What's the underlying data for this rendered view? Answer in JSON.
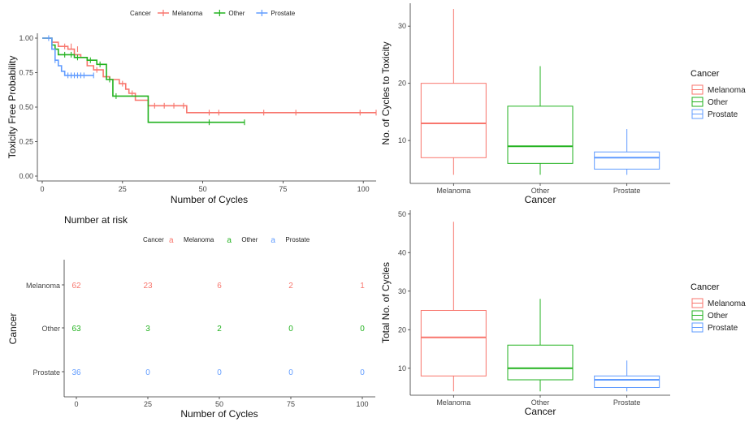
{
  "colors": {
    "Melanoma": "#F8766D",
    "Other": "#22B21F",
    "Prostate": "#619CFF",
    "axis": "#333333"
  },
  "chart_data": [
    {
      "type": "line",
      "subtype": "kaplan-meier",
      "xlabel": "Number of Cycles",
      "ylabel": "Toxicity Free Probability",
      "xlim": [
        0,
        104
      ],
      "ylim": [
        0,
        1
      ],
      "x_ticks": [
        "0",
        "25",
        "50",
        "75",
        "100"
      ],
      "y_ticks": [
        "0.00",
        "0.25",
        "0.50",
        "0.75",
        "1.00"
      ],
      "legend": {
        "title": "Cancer",
        "position": "top",
        "labels": [
          "Melanoma",
          "Other",
          "Prostate"
        ]
      },
      "series": [
        {
          "name": "Melanoma",
          "steps": [
            [
              0,
              1.0
            ],
            [
              3,
              0.97
            ],
            [
              5,
              0.94
            ],
            [
              8,
              0.92
            ],
            [
              10,
              0.88
            ],
            [
              12,
              0.86
            ],
            [
              14,
              0.8
            ],
            [
              16,
              0.77
            ],
            [
              19,
              0.72
            ],
            [
              21,
              0.7
            ],
            [
              24,
              0.67
            ],
            [
              26,
              0.63
            ],
            [
              27,
              0.6
            ],
            [
              29,
              0.55
            ],
            [
              33,
              0.51
            ],
            [
              45,
              0.46
            ],
            [
              104,
              0.46
            ]
          ],
          "censors": [
            [
              7,
              0.94
            ],
            [
              9,
              0.94
            ],
            [
              11,
              0.92
            ],
            [
              17,
              0.77
            ],
            [
              25,
              0.67
            ],
            [
              28,
              0.6
            ],
            [
              35,
              0.51
            ],
            [
              38,
              0.51
            ],
            [
              41,
              0.51
            ],
            [
              44,
              0.51
            ],
            [
              52,
              0.46
            ],
            [
              55,
              0.46
            ],
            [
              69,
              0.46
            ],
            [
              79,
              0.46
            ],
            [
              99,
              0.46
            ],
            [
              104,
              0.46
            ]
          ]
        },
        {
          "name": "Other",
          "steps": [
            [
              0,
              1.0
            ],
            [
              3,
              0.95
            ],
            [
              4,
              0.92
            ],
            [
              5,
              0.88
            ],
            [
              10,
              0.86
            ],
            [
              14,
              0.84
            ],
            [
              17,
              0.81
            ],
            [
              20,
              0.7
            ],
            [
              22,
              0.58
            ],
            [
              33,
              0.39
            ],
            [
              63,
              0.39
            ]
          ],
          "censors": [
            [
              7,
              0.88
            ],
            [
              9,
              0.88
            ],
            [
              11,
              0.86
            ],
            [
              15,
              0.84
            ],
            [
              18,
              0.81
            ],
            [
              21,
              0.7
            ],
            [
              23,
              0.58
            ],
            [
              52,
              0.39
            ],
            [
              63,
              0.39
            ]
          ]
        },
        {
          "name": "Prostate",
          "steps": [
            [
              0,
              1.0
            ],
            [
              3,
              0.92
            ],
            [
              4,
              0.84
            ],
            [
              5,
              0.8
            ],
            [
              6,
              0.76
            ],
            [
              7,
              0.73
            ],
            [
              16,
              0.73
            ]
          ],
          "censors": [
            [
              2,
              1.0
            ],
            [
              4,
              0.84
            ],
            [
              8,
              0.73
            ],
            [
              9,
              0.73
            ],
            [
              10,
              0.73
            ],
            [
              11,
              0.73
            ],
            [
              12,
              0.73
            ],
            [
              13,
              0.73
            ],
            [
              16,
              0.73
            ]
          ]
        }
      ]
    },
    {
      "type": "table",
      "title": "Number at risk",
      "xlabel": "Number of Cycles",
      "ylabel": "Cancer",
      "legend": {
        "title": "Cancer",
        "glyph": "a",
        "labels": [
          "Melanoma",
          "Other",
          "Prostate"
        ]
      },
      "columns": [
        "0",
        "25",
        "50",
        "75",
        "100"
      ],
      "rows": [
        {
          "name": "Melanoma",
          "values": [
            "62",
            "23",
            "6",
            "2",
            "1"
          ]
        },
        {
          "name": "Other",
          "values": [
            "63",
            "3",
            "2",
            "0",
            "0"
          ]
        },
        {
          "name": "Prostate",
          "values": [
            "36",
            "0",
            "0",
            "0",
            "0"
          ]
        }
      ]
    },
    {
      "type": "box",
      "xlabel": "Cancer",
      "ylabel": "No. of Cycles to Toxicity",
      "ylim": [
        2.5,
        34
      ],
      "y_ticks": [
        10,
        20,
        30
      ],
      "categories": [
        "Melanoma",
        "Other",
        "Prostate"
      ],
      "legend": {
        "title": "Cancer",
        "position": "right",
        "labels": [
          "Melanoma",
          "Other",
          "Prostate"
        ]
      },
      "boxes": [
        {
          "name": "Melanoma",
          "min": 4,
          "q1": 7,
          "median": 13,
          "q3": 20,
          "max": 33
        },
        {
          "name": "Other",
          "min": 4,
          "q1": 6,
          "median": 9,
          "q3": 16,
          "max": 23
        },
        {
          "name": "Prostate",
          "min": 4,
          "q1": 5,
          "median": 7,
          "q3": 8,
          "max": 12
        }
      ]
    },
    {
      "type": "box",
      "xlabel": "Cancer",
      "ylabel": "Total No. of Cycles",
      "ylim": [
        3,
        51
      ],
      "y_ticks": [
        10,
        20,
        30,
        40,
        50
      ],
      "categories": [
        "Melanoma",
        "Other",
        "Prostate"
      ],
      "legend": {
        "title": "Cancer",
        "position": "right",
        "labels": [
          "Melanoma",
          "Other",
          "Prostate"
        ]
      },
      "boxes": [
        {
          "name": "Melanoma",
          "min": 4,
          "q1": 8,
          "median": 18,
          "q3": 25,
          "max": 48
        },
        {
          "name": "Other",
          "min": 4,
          "q1": 7,
          "median": 10,
          "q3": 16,
          "max": 28
        },
        {
          "name": "Prostate",
          "min": 4,
          "q1": 5,
          "median": 7,
          "q3": 8,
          "max": 12
        }
      ]
    }
  ]
}
